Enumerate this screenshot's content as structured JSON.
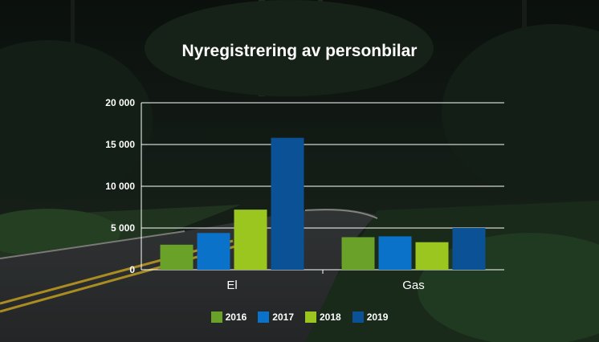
{
  "chart_data": {
    "type": "bar",
    "title": "Nyregistrering av personbilar",
    "categories": [
      "El",
      "Gas"
    ],
    "series": [
      {
        "name": "2016",
        "color": "#6aa229",
        "values": [
          3000,
          3900
        ]
      },
      {
        "name": "2017",
        "color": "#0a72c8",
        "values": [
          4400,
          4000
        ]
      },
      {
        "name": "2018",
        "color": "#9bc51f",
        "values": [
          7200,
          3300
        ]
      },
      {
        "name": "2019",
        "color": "#0b5196",
        "values": [
          15800,
          5000
        ]
      }
    ],
    "ylim": [
      0,
      20000
    ],
    "yticks": [
      0,
      5000,
      10000,
      15000,
      20000
    ],
    "ytick_labels": [
      "0",
      "5 000",
      "10 000",
      "15 000",
      "20 000"
    ],
    "xlabel": "",
    "ylabel": "",
    "grid": true,
    "legend_position": "bottom"
  }
}
